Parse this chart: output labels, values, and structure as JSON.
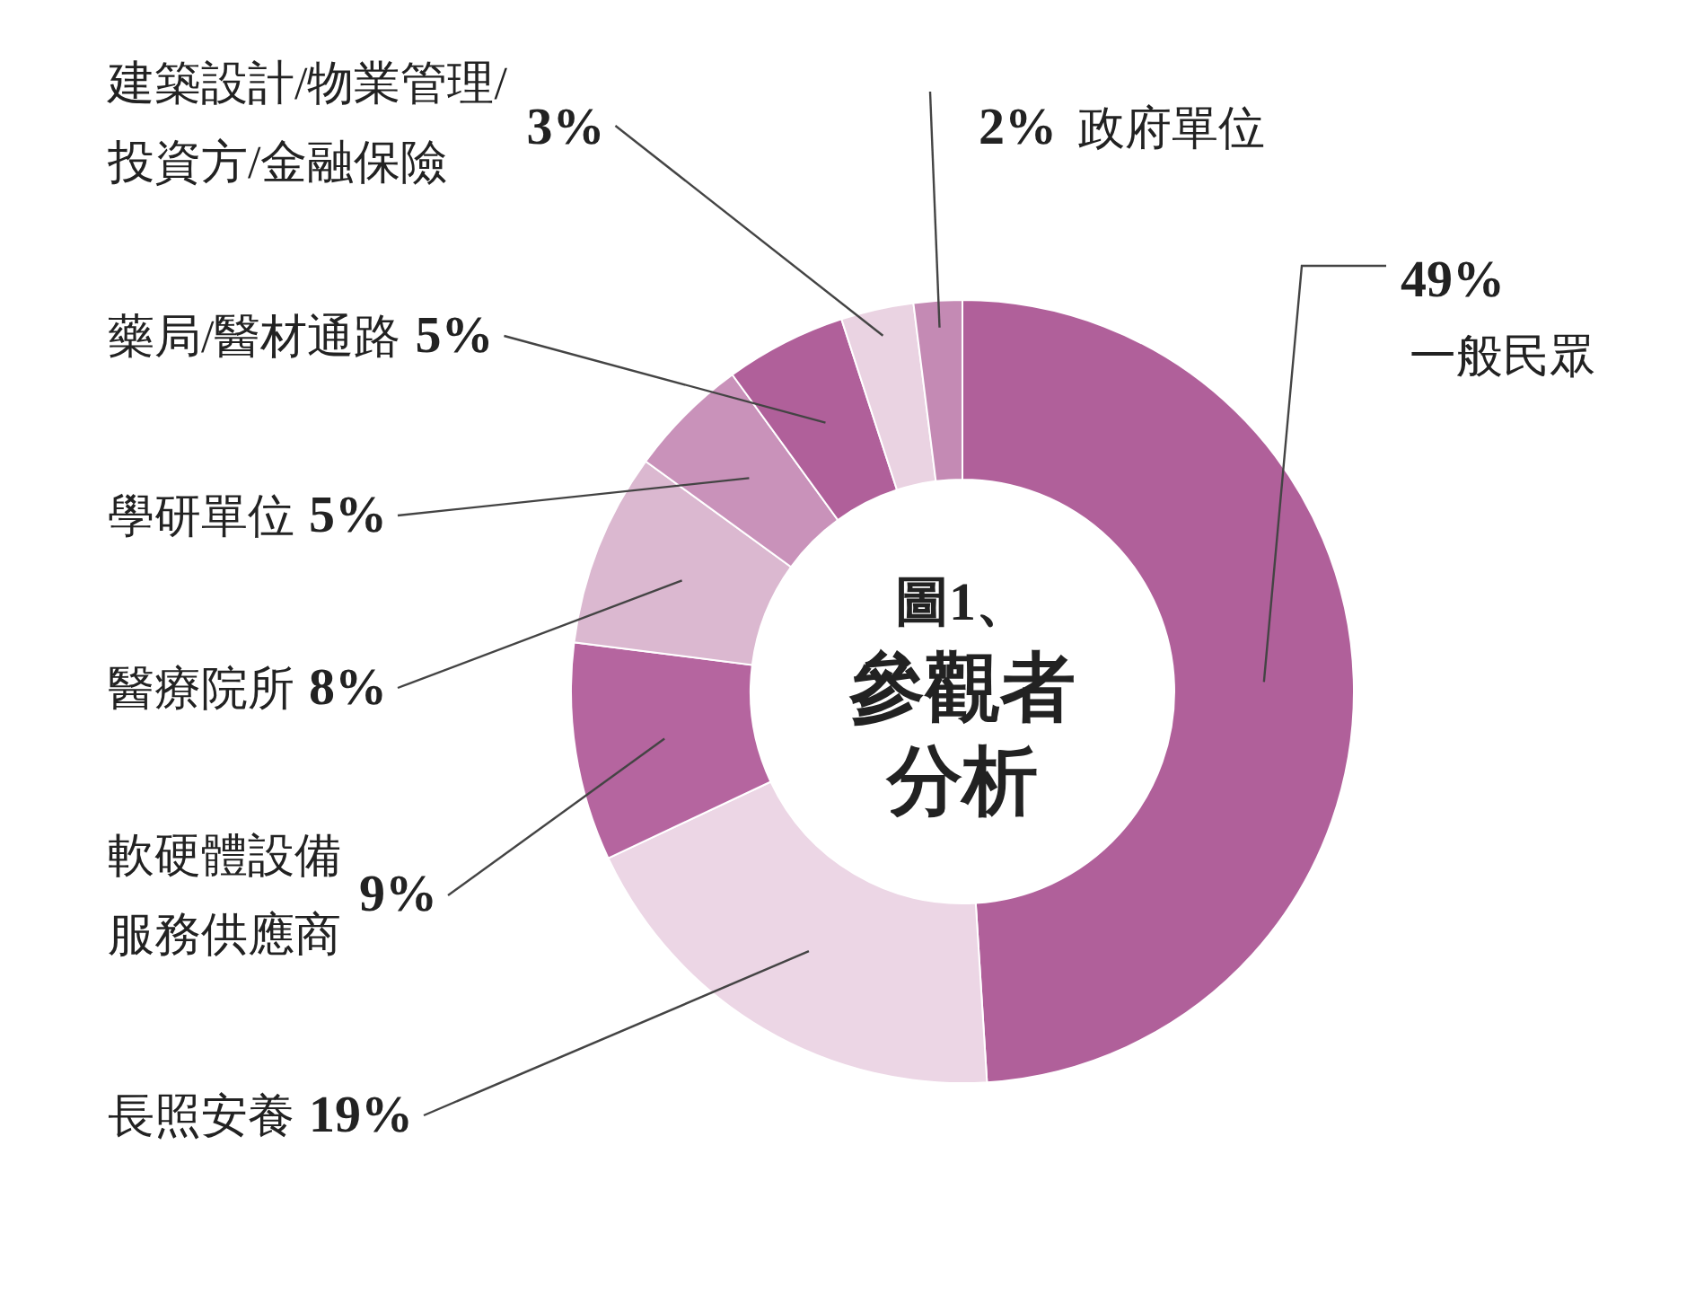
{
  "chart_data": {
    "type": "donut",
    "title": "圖1、",
    "subtitle": "參觀者分析",
    "categories": [
      "一般民眾",
      "長照安養",
      "軟硬體設備服務供應商",
      "醫療院所",
      "學研單位",
      "藥局/醫材通路",
      "建築設計/物業管理/投資方/金融保險",
      "政府單位"
    ],
    "values": [
      49,
      19,
      9,
      8,
      5,
      5,
      3,
      2
    ],
    "value_labels": [
      "49%",
      "19%",
      "9%",
      "8%",
      "5%",
      "5%",
      "3%",
      "2%"
    ],
    "colors": [
      "#b0609a",
      "#ecd6e5",
      "#b5659f",
      "#dbb8d0",
      "#c992ba",
      "#b0609a",
      "#ead3e2",
      "#c48ab4"
    ]
  }
}
